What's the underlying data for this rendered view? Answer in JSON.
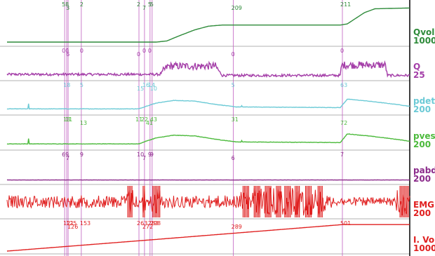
{
  "colors": {
    "background": "#ffffff",
    "divider": "#999999",
    "marker": "#c060c0",
    "right_axis": "#000000",
    "qvol": "#2e8b3a",
    "q": "#a43ea8",
    "pdet": "#6ccad6",
    "pves": "#4cba3c",
    "pabd": "#8b2b8b",
    "emg": "#e02020",
    "lvol": "#e02020"
  },
  "chart_data": {
    "type": "line",
    "title": "",
    "x_range": [
      0,
      580
    ],
    "marker_x": [
      83,
      86,
      88,
      107,
      190,
      198,
      206,
      209,
      326,
      483
    ],
    "series": [
      {
        "key": "qvol",
        "color": "#2e8b3a",
        "y_range": [
          0,
          1000
        ],
        "x": [
          0,
          215,
          230,
          250,
          270,
          290,
          310,
          480,
          490,
          500,
          515,
          530,
          580
        ],
        "values": [
          0,
          0,
          30,
          180,
          320,
          420,
          450,
          450,
          480,
          600,
          780,
          880,
          900
        ]
      },
      {
        "key": "q",
        "color": "#a43ea8",
        "y_range": [
          0,
          25
        ],
        "noise_amp": 1.2,
        "extra": "q",
        "x": [
          0,
          220,
          232,
          300,
          310,
          480,
          482,
          545,
          548,
          580
        ],
        "values": [
          2,
          2,
          10,
          10,
          1,
          1,
          11,
          11,
          1,
          1
        ]
      },
      {
        "key": "pdet",
        "color": "#6ccad6",
        "y_range": [
          0,
          200
        ],
        "noise_amp": 1.4,
        "spikes": [
          [
            31,
            55
          ],
          [
            338,
            40
          ]
        ],
        "x": [
          0,
          190,
          200,
          215,
          240,
          270,
          300,
          330,
          480,
          490,
          520,
          560,
          580
        ],
        "values": [
          15,
          15,
          35,
          60,
          80,
          75,
          50,
          30,
          25,
          90,
          75,
          50,
          35
        ]
      },
      {
        "key": "pves",
        "color": "#4cba3c",
        "y_range": [
          0,
          200
        ],
        "noise_amp": 1.4,
        "spikes": [
          [
            31,
            55
          ],
          [
            338,
            40
          ]
        ],
        "x": [
          0,
          190,
          200,
          215,
          240,
          270,
          300,
          330,
          480,
          490,
          520,
          560,
          580
        ],
        "values": [
          15,
          15,
          35,
          60,
          80,
          75,
          50,
          30,
          25,
          90,
          75,
          50,
          35
        ]
      },
      {
        "key": "pabd",
        "color": "#8b2b8b",
        "y_range": [
          0,
          200
        ],
        "noise_amp": 0.6,
        "x": [
          0,
          580
        ],
        "values": [
          2,
          2
        ]
      },
      {
        "key": "emg",
        "color": "#e02020",
        "y_range": [
          0,
          200
        ],
        "extra": "emg",
        "x": [
          0,
          580
        ],
        "values": [
          0,
          0
        ]
      },
      {
        "key": "lvol",
        "color": "#e02020",
        "y_range": [
          0,
          1000
        ],
        "x": [
          0,
          206,
          483,
          580
        ],
        "values": [
          0,
          380,
          900,
          900
        ]
      }
    ],
    "lanes": [
      {
        "key": "qvol",
        "labels": [
          "Qvol",
          "1000"
        ],
        "marker_labels": [
          {
            "text": "5",
            "x": 82
          },
          {
            "text": "8",
            "x": 87
          },
          {
            "text": "3",
            "x": 88
          },
          {
            "text": "2",
            "x": 108
          },
          {
            "text": "2",
            "x": 190
          },
          {
            "text": "7",
            "x": 198
          },
          {
            "text": "5",
            "x": 206
          },
          {
            "text": "5",
            "x": 209
          },
          {
            "text": "209",
            "x": 326
          },
          {
            "text": "211",
            "x": 483
          }
        ]
      },
      {
        "key": "q",
        "labels": [
          "Q",
          "25"
        ],
        "marker_labels": [
          {
            "text": "0",
            "x": 82
          },
          {
            "text": "0",
            "x": 87
          },
          {
            "text": "6",
            "x": 88
          },
          {
            "text": "1",
            "x": 88
          },
          {
            "text": "0",
            "x": 108
          },
          {
            "text": "0",
            "x": 190
          },
          {
            "text": "0",
            "x": 198
          },
          {
            "text": "0",
            "x": 206
          },
          {
            "text": "0",
            "x": 326
          },
          {
            "text": "0",
            "x": 483
          }
        ]
      },
      {
        "key": "pdet",
        "labels": [
          "pdet",
          "200"
        ],
        "marker_labels": [
          {
            "text": "18",
            "x": 84
          },
          {
            "text": "5",
            "x": 108
          },
          {
            "text": "15",
            "x": 190
          },
          {
            "text": "16",
            "x": 198
          },
          {
            "text": "14",
            "x": 206
          },
          {
            "text": "10",
            "x": 209
          },
          {
            "text": "5",
            "x": 326
          },
          {
            "text": "63",
            "x": 483
          }
        ]
      },
      {
        "key": "pves",
        "labels": [
          "pves",
          "200"
        ],
        "marker_labels": [
          {
            "text": "13",
            "x": 84
          },
          {
            "text": "11",
            "x": 87
          },
          {
            "text": "13",
            "x": 108
          },
          {
            "text": "11",
            "x": 188
          },
          {
            "text": "22",
            "x": 196
          },
          {
            "text": "41",
            "x": 203
          },
          {
            "text": "43",
            "x": 209
          },
          {
            "text": "31",
            "x": 326
          },
          {
            "text": "72",
            "x": 483
          }
        ]
      },
      {
        "key": "pabd",
        "labels": [
          "pabd",
          "200"
        ],
        "marker_labels": [
          {
            "text": "6",
            "x": 82
          },
          {
            "text": "9",
            "x": 87
          },
          {
            "text": "7",
            "x": 88
          },
          {
            "text": "9",
            "x": 108
          },
          {
            "text": "10",
            "x": 190
          },
          {
            "text": "7",
            "x": 198
          },
          {
            "text": "9",
            "x": 206
          },
          {
            "text": "9",
            "x": 209
          },
          {
            "text": "6",
            "x": 326
          },
          {
            "text": "7",
            "x": 483
          }
        ]
      },
      {
        "key": "emg",
        "labels": [
          "EMG",
          "200"
        ],
        "marker_labels": []
      },
      {
        "key": "lvol",
        "labels": [
          "I. Vol",
          "1000"
        ],
        "marker_labels": [
          {
            "text": "121",
            "x": 84
          },
          {
            "text": "125",
            "x": 88
          },
          {
            "text": "126",
            "x": 90
          },
          {
            "text": "153",
            "x": 108
          },
          {
            "text": "263",
            "x": 190
          },
          {
            "text": "272",
            "x": 198
          },
          {
            "text": "283",
            "x": 206
          },
          {
            "text": "298",
            "x": 209
          },
          {
            "text": "289",
            "x": 326
          },
          {
            "text": "501",
            "x": 483
          }
        ]
      }
    ]
  }
}
